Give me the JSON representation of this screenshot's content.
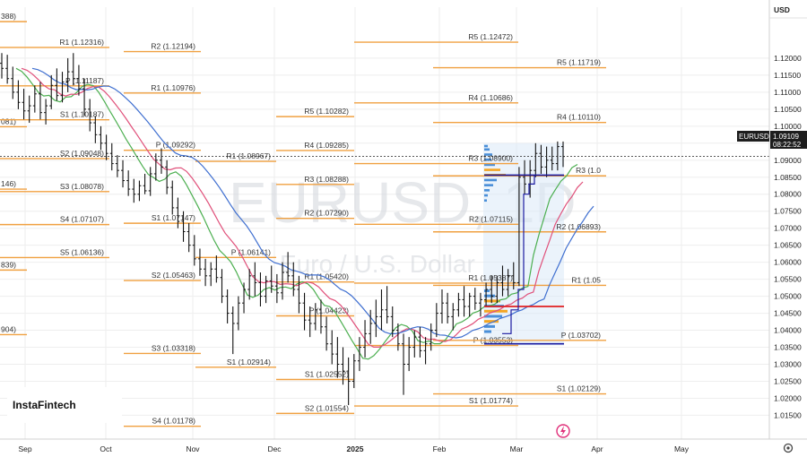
{
  "chart_data": {
    "type": "candlestick",
    "symbol": "EURUSD",
    "watermark": "EURUSD, 1D",
    "watermark_sub": "Euro / U.S. Dollar",
    "currency": "USD",
    "last_price_label": "EURUSD",
    "last_price": "1.09109",
    "countdown": "08:22:52",
    "brand": "InstaFintech",
    "ylim": [
      1.008,
      1.135
    ],
    "y_ticks": [
      "1.12000",
      "1.11500",
      "1.11000",
      "1.10500",
      "1.10000",
      "1.09500",
      "1.09000",
      "1.08500",
      "1.08000",
      "1.07500",
      "1.07000",
      "1.06500",
      "1.06000",
      "1.05500",
      "1.05000",
      "1.04500",
      "1.04000",
      "1.03500",
      "1.03000",
      "1.02500",
      "1.02000",
      "1.01500"
    ],
    "x_ticks": [
      {
        "label": "Sep",
        "bold": false
      },
      {
        "label": "Oct",
        "bold": false
      },
      {
        "label": "Nov",
        "bold": false
      },
      {
        "label": "Dec",
        "bold": false
      },
      {
        "label": "2025",
        "bold": true
      },
      {
        "label": "Feb",
        "bold": false
      },
      {
        "label": "Mar",
        "bold": false
      },
      {
        "label": "Apr",
        "bold": false
      },
      {
        "label": "May",
        "bold": false
      }
    ],
    "dashed_price": 1.09109,
    "colors": {
      "pivot": "#f0a040",
      "ma_green": "#4caf50",
      "ma_red": "#e0507a",
      "ma_blue": "#3f6fd0",
      "candle": "#111111",
      "vp_blue": "#4a8fd8",
      "vp_orange": "#f5a623",
      "box": "#1a1aa0",
      "poc": "#e02020"
    },
    "pivots": [
      {
        "label": "388)",
        "value": 1.13075,
        "column": 0
      },
      {
        "label": "081)",
        "value": 1.09985,
        "column": 0
      },
      {
        "label": "146)",
        "value": 1.0815,
        "column": 0
      },
      {
        "label": "839)",
        "value": 1.0577,
        "column": 0
      },
      {
        "label": "904)",
        "value": 1.0387,
        "column": 0
      },
      {
        "label": "R1 (1.12316)",
        "value": 1.12316,
        "column": 1
      },
      {
        "label": "P (1.11187)",
        "value": 1.11187,
        "column": 1
      },
      {
        "label": "S1 (1.10187)",
        "value": 1.10187,
        "column": 1
      },
      {
        "label": "S2 (1.09048)",
        "value": 1.09048,
        "column": 1
      },
      {
        "label": "S3 (1.08078)",
        "value": 1.08078,
        "column": 1
      },
      {
        "label": "S4 (1.07107)",
        "value": 1.07107,
        "column": 1
      },
      {
        "label": "S5 (1.06136)",
        "value": 1.06136,
        "column": 1
      },
      {
        "label": "R2 (1.12194)",
        "value": 1.12194,
        "column": 2
      },
      {
        "label": "R1 (1.10976)",
        "value": 1.10976,
        "column": 2
      },
      {
        "label": "P (1.09292)",
        "value": 1.09292,
        "column": 2
      },
      {
        "label": "S1 (1.07147)",
        "value": 1.07147,
        "column": 2
      },
      {
        "label": "S2 (1.05463)",
        "value": 1.05463,
        "column": 2
      },
      {
        "label": "S3 (1.03318)",
        "value": 1.03318,
        "column": 2
      },
      {
        "label": "S4 (1.01178)",
        "value": 1.01178,
        "column": 2
      },
      {
        "label": "R1 (1.08967)",
        "value": 1.08967,
        "column": 3
      },
      {
        "label": "P (1.06141)",
        "value": 1.06141,
        "column": 3
      },
      {
        "label": "S1 (1.02914)",
        "value": 1.02914,
        "column": 3
      },
      {
        "label": "R5 (1.10282)",
        "value": 1.10282,
        "column": 4
      },
      {
        "label": "R4 (1.09285)",
        "value": 1.09285,
        "column": 4
      },
      {
        "label": "R3 (1.08288)",
        "value": 1.08288,
        "column": 4
      },
      {
        "label": "R2 (1.07290)",
        "value": 1.0729,
        "column": 4
      },
      {
        "label": "R1 (1.05420)",
        "value": 1.0542,
        "column": 4
      },
      {
        "label": "P (1.04423)",
        "value": 1.04423,
        "column": 4
      },
      {
        "label": "S1 (1.02552)",
        "value": 1.02552,
        "column": 4
      },
      {
        "label": "S2 (1.01554)",
        "value": 1.01554,
        "column": 4
      },
      {
        "label": "R5 (1.12472)",
        "value": 1.12472,
        "column": 5
      },
      {
        "label": "R4 (1.10686)",
        "value": 1.10686,
        "column": 5
      },
      {
        "label": "R3 (1.08900)",
        "value": 1.089,
        "column": 5
      },
      {
        "label": "R2 (1.07115)",
        "value": 1.07115,
        "column": 5
      },
      {
        "label": "R1 (1.05387)",
        "value": 1.05387,
        "column": 5
      },
      {
        "label": "P (1.03553)",
        "value": 1.03553,
        "column": 5
      },
      {
        "label": "S1 (1.01774)",
        "value": 1.01774,
        "column": 5
      },
      {
        "label": "R5 (1.11719)",
        "value": 1.11719,
        "column": 6
      },
      {
        "label": "R4 (1.10110)",
        "value": 1.1011,
        "column": 6
      },
      {
        "label": "R3 (1.0",
        "value": 1.0854,
        "column": 6
      },
      {
        "label": "R2 (1.06893)",
        "value": 1.06893,
        "column": 6
      },
      {
        "label": "R1 (1.05",
        "value": 1.0532,
        "column": 6
      },
      {
        "label": "P (1.03702)",
        "value": 1.03702,
        "column": 6
      },
      {
        "label": "S1 (1.02129)",
        "value": 1.02129,
        "column": 6
      }
    ],
    "candles": [
      [
        1.1185,
        1.1215,
        1.114,
        1.117
      ],
      [
        1.117,
        1.121,
        1.1125,
        1.114
      ],
      [
        1.114,
        1.1175,
        1.108,
        1.11
      ],
      [
        1.11,
        1.1135,
        1.105,
        1.107
      ],
      [
        1.107,
        1.111,
        1.102,
        1.1045
      ],
      [
        1.1045,
        1.109,
        1.101,
        1.106
      ],
      [
        1.106,
        1.112,
        1.104,
        1.1095
      ],
      [
        1.1095,
        1.113,
        1.102,
        1.104
      ],
      [
        1.104,
        1.108,
        1.1005,
        1.106
      ],
      [
        1.106,
        1.115,
        1.105,
        1.112
      ],
      [
        1.112,
        1.117,
        1.1075,
        1.109
      ],
      [
        1.109,
        1.116,
        1.107,
        1.113
      ],
      [
        1.113,
        1.12,
        1.11,
        1.116
      ],
      [
        1.116,
        1.1215,
        1.112,
        1.114
      ],
      [
        1.114,
        1.118,
        1.109,
        1.111
      ],
      [
        1.111,
        1.114,
        1.103,
        1.105
      ],
      [
        1.105,
        1.108,
        1.0985,
        1.101
      ],
      [
        1.101,
        1.103,
        1.095,
        1.0975
      ],
      [
        1.0975,
        1.1,
        1.093,
        1.095
      ],
      [
        1.095,
        1.0975,
        1.09,
        1.092
      ],
      [
        1.092,
        1.095,
        1.087,
        1.089
      ],
      [
        1.089,
        1.0915,
        1.085,
        1.087
      ],
      [
        1.087,
        1.09,
        1.082,
        1.084
      ],
      [
        1.084,
        1.087,
        1.0795,
        1.0815
      ],
      [
        1.0815,
        1.0845,
        1.0775,
        1.08
      ],
      [
        1.08,
        1.084,
        1.078,
        1.0825
      ],
      [
        1.0825,
        1.086,
        1.08,
        1.081
      ],
      [
        1.081,
        1.088,
        1.0795,
        1.086
      ],
      [
        1.086,
        1.092,
        1.084,
        1.09
      ],
      [
        1.09,
        1.0935,
        1.086,
        1.088
      ],
      [
        1.088,
        1.09,
        1.08,
        1.082
      ],
      [
        1.082,
        1.084,
        1.074,
        1.076
      ],
      [
        1.076,
        1.079,
        1.07,
        1.072
      ],
      [
        1.072,
        1.075,
        1.066,
        1.069
      ],
      [
        1.069,
        1.0715,
        1.063,
        1.065
      ],
      [
        1.065,
        1.068,
        1.059,
        1.061
      ],
      [
        1.061,
        1.064,
        1.056,
        1.058
      ],
      [
        1.058,
        1.061,
        1.053,
        1.056
      ],
      [
        1.056,
        1.06,
        1.053,
        1.058
      ],
      [
        1.058,
        1.062,
        1.054,
        1.0555
      ],
      [
        1.0555,
        1.058,
        1.048,
        1.05
      ],
      [
        1.05,
        1.052,
        1.042,
        1.045
      ],
      [
        1.045,
        1.047,
        1.033,
        1.042
      ],
      [
        1.042,
        1.05,
        1.04,
        1.048
      ],
      [
        1.048,
        1.054,
        1.045,
        1.052
      ],
      [
        1.052,
        1.058,
        1.049,
        1.056
      ],
      [
        1.056,
        1.06,
        1.05,
        1.054
      ],
      [
        1.054,
        1.057,
        1.047,
        1.05
      ],
      [
        1.05,
        1.056,
        1.048,
        1.0545
      ],
      [
        1.0545,
        1.059,
        1.051,
        1.053
      ],
      [
        1.053,
        1.0565,
        1.048,
        1.051
      ],
      [
        1.051,
        1.06,
        1.049,
        1.057
      ],
      [
        1.057,
        1.063,
        1.054,
        1.056
      ],
      [
        1.056,
        1.06,
        1.05,
        1.052
      ],
      [
        1.052,
        1.056,
        1.045,
        1.048
      ],
      [
        1.048,
        1.051,
        1.04,
        1.043
      ],
      [
        1.043,
        1.047,
        1.038,
        1.042
      ],
      [
        1.042,
        1.048,
        1.04,
        1.046
      ],
      [
        1.046,
        1.049,
        1.039,
        1.041
      ],
      [
        1.041,
        1.044,
        1.034,
        1.036
      ],
      [
        1.036,
        1.04,
        1.03,
        1.033
      ],
      [
        1.033,
        1.038,
        1.026,
        1.03
      ],
      [
        1.03,
        1.035,
        1.024,
        1.028
      ],
      [
        1.028,
        1.032,
        1.018,
        1.025
      ],
      [
        1.025,
        1.033,
        1.023,
        1.031
      ],
      [
        1.031,
        1.038,
        1.028,
        1.035
      ],
      [
        1.035,
        1.043,
        1.032,
        1.039
      ],
      [
        1.039,
        1.046,
        1.036,
        1.042
      ],
      [
        1.042,
        1.049,
        1.038,
        1.044
      ],
      [
        1.044,
        1.052,
        1.04,
        1.046
      ],
      [
        1.046,
        1.053,
        1.042,
        1.044
      ],
      [
        1.044,
        1.047,
        1.038,
        1.04
      ],
      [
        1.04,
        1.042,
        1.034,
        1.036
      ],
      [
        1.036,
        1.039,
        1.021,
        1.03
      ],
      [
        1.03,
        1.038,
        1.028,
        1.035
      ],
      [
        1.035,
        1.04,
        1.032,
        1.038
      ],
      [
        1.038,
        1.041,
        1.032,
        1.034
      ],
      [
        1.034,
        1.038,
        1.03,
        1.036
      ],
      [
        1.036,
        1.042,
        1.034,
        1.04
      ],
      [
        1.04,
        1.048,
        1.038,
        1.045
      ],
      [
        1.045,
        1.052,
        1.042,
        1.048
      ],
      [
        1.048,
        1.051,
        1.042,
        1.044
      ],
      [
        1.044,
        1.048,
        1.04,
        1.046
      ],
      [
        1.046,
        1.051,
        1.044,
        1.049
      ],
      [
        1.049,
        1.053,
        1.044,
        1.047
      ],
      [
        1.047,
        1.051,
        1.044,
        1.05
      ],
      [
        1.05,
        1.0525,
        1.046,
        1.048
      ],
      [
        1.048,
        1.051,
        1.044,
        1.049
      ],
      [
        1.049,
        1.054,
        1.047,
        1.052
      ],
      [
        1.052,
        1.056,
        1.048,
        1.05
      ],
      [
        1.05,
        1.056,
        1.048,
        1.054
      ],
      [
        1.054,
        1.059,
        1.05,
        1.052
      ],
      [
        1.052,
        1.058,
        1.05,
        1.056
      ],
      [
        1.056,
        1.06,
        1.052,
        1.054
      ],
      [
        1.054,
        1.088,
        1.053,
        1.085
      ],
      [
        1.085,
        1.09,
        1.08,
        1.083
      ],
      [
        1.083,
        1.09,
        1.079,
        1.087
      ],
      [
        1.087,
        1.095,
        1.085,
        1.092
      ],
      [
        1.092,
        1.0945,
        1.086,
        1.088
      ],
      [
        1.088,
        1.094,
        1.085,
        1.09
      ],
      [
        1.09,
        1.094,
        1.087,
        1.089
      ],
      [
        1.089,
        1.0955,
        1.087,
        1.094
      ],
      [
        1.094,
        1.0955,
        1.088,
        1.0911
      ]
    ]
  }
}
